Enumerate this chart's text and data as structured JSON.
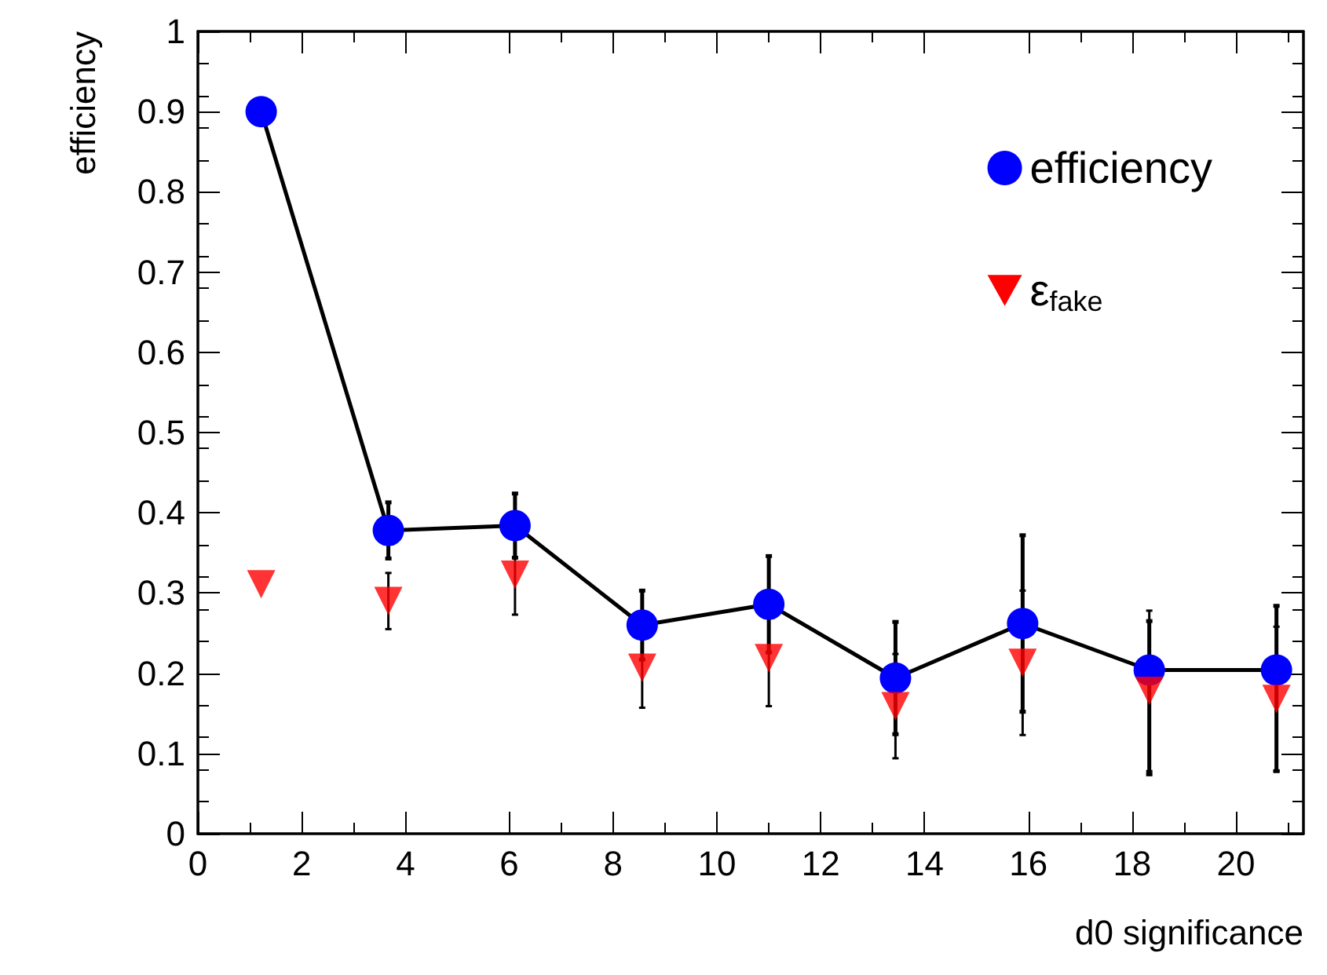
{
  "chart_data": {
    "type": "line",
    "xlabel": "d0 significance",
    "ylabel": "efficiency",
    "x": [
      1.22,
      3.67,
      6.11,
      8.56,
      11,
      13.44,
      15.89,
      18.33,
      20.78
    ],
    "xlim": [
      0,
      21.3
    ],
    "xticks": [
      0,
      2,
      4,
      6,
      8,
      10,
      12,
      14,
      16,
      18,
      20
    ],
    "ylim": [
      0,
      1
    ],
    "yticks": [
      0,
      0.1,
      0.2,
      0.3,
      0.4,
      0.5,
      0.6,
      0.7,
      0.8,
      0.9,
      1
    ],
    "grid": false,
    "legend": "top right",
    "series": [
      {
        "name": "efficiency",
        "marker": "circle",
        "color": "#0000ff",
        "values": [
          0.9,
          0.378,
          0.384,
          0.26,
          0.286,
          0.194,
          0.262,
          0.204,
          0.204
        ],
        "errors": [
          null,
          0.035,
          0.04,
          0.043,
          0.06,
          0.07,
          0.11,
          [
            0.074,
            0.265
          ],
          [
            0.078,
            0.284
          ]
        ]
      },
      {
        "name": "ε$_{fake}$",
        "type": "scatter",
        "marker": "triangle",
        "color": "#ff0000",
        "values": [
          0.311,
          0.29,
          0.323,
          0.207,
          0.219,
          0.159,
          0.213,
          0.178,
          0.168
        ],
        "errors": [
          null,
          0.035,
          0.05,
          0.05,
          0.06,
          0.065,
          0.09,
          0.1,
          0.09
        ]
      }
    ]
  }
}
